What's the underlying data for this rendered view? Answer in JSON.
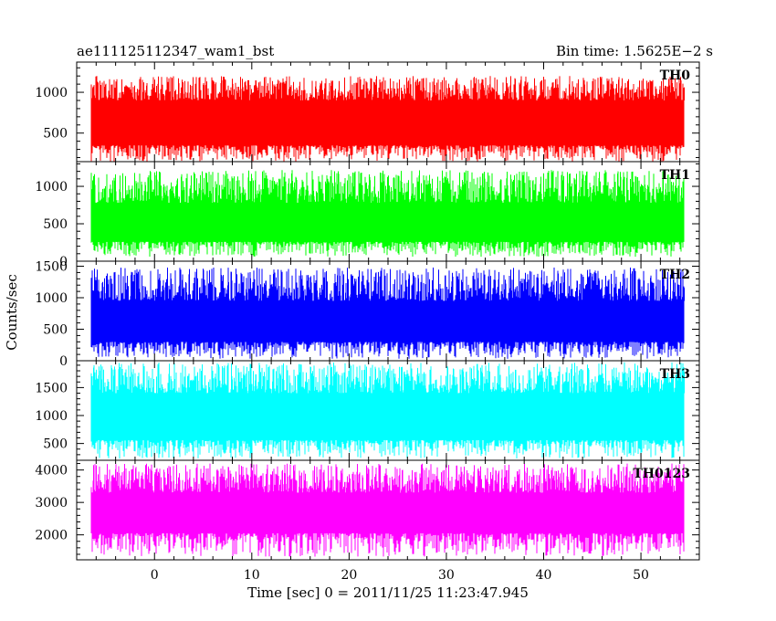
{
  "chart_data": {
    "type": "line",
    "title": "ae111125112347_wam1_bst",
    "subtitle": "Bin time: 1.5625E−2 s",
    "xlabel": "Time [sec] 0 = 2011/11/25 11:23:47.945",
    "ylabel": "Counts/sec",
    "xlim": [
      -8,
      56
    ],
    "x_ticks": [
      0,
      10,
      20,
      30,
      40,
      50
    ],
    "x_tick_labels": [
      "0",
      "10",
      "20",
      "30",
      "40",
      "50"
    ],
    "data_x_range": [
      -8,
      56
    ],
    "grid": false,
    "panels": [
      {
        "name": "TH0",
        "color": "#ff0000",
        "ylim": [
          150,
          1370
        ],
        "y_ticks": [
          500,
          1000
        ],
        "y_tick_labels": [
          "500",
          "1000"
        ],
        "typical_min": 150,
        "typical_max": 1200,
        "band_low": 350,
        "band_high": 900
      },
      {
        "name": "TH1",
        "color": "#00ff00",
        "ylim": [
          0,
          1330
        ],
        "y_ticks": [
          0,
          500,
          1000
        ],
        "y_tick_labels": [
          "0",
          "500",
          "1000"
        ],
        "typical_min": 60,
        "typical_max": 1220,
        "band_low": 260,
        "band_high": 780
      },
      {
        "name": "TH2",
        "color": "#0000ff",
        "ylim": [
          0,
          1580
        ],
        "y_ticks": [
          0,
          500,
          1000,
          1500
        ],
        "y_tick_labels": [
          "0",
          "500",
          "1000",
          "1500"
        ],
        "typical_min": 30,
        "typical_max": 1480,
        "band_low": 300,
        "band_high": 950
      },
      {
        "name": "TH3",
        "color": "#00ffff",
        "ylim": [
          200,
          1980
        ],
        "y_ticks": [
          500,
          1000,
          1500
        ],
        "y_tick_labels": [
          "500",
          "1000",
          "1500"
        ],
        "typical_min": 230,
        "typical_max": 1950,
        "band_low": 560,
        "band_high": 1400
      },
      {
        "name": "TH0123",
        "color": "#ff00ff",
        "ylim": [
          1230,
          4300
        ],
        "y_ticks": [
          2000,
          3000,
          4000
        ],
        "y_tick_labels": [
          "2000",
          "3000",
          "4000"
        ],
        "typical_min": 1320,
        "typical_max": 4200,
        "band_low": 2050,
        "band_high": 3300
      }
    ]
  }
}
